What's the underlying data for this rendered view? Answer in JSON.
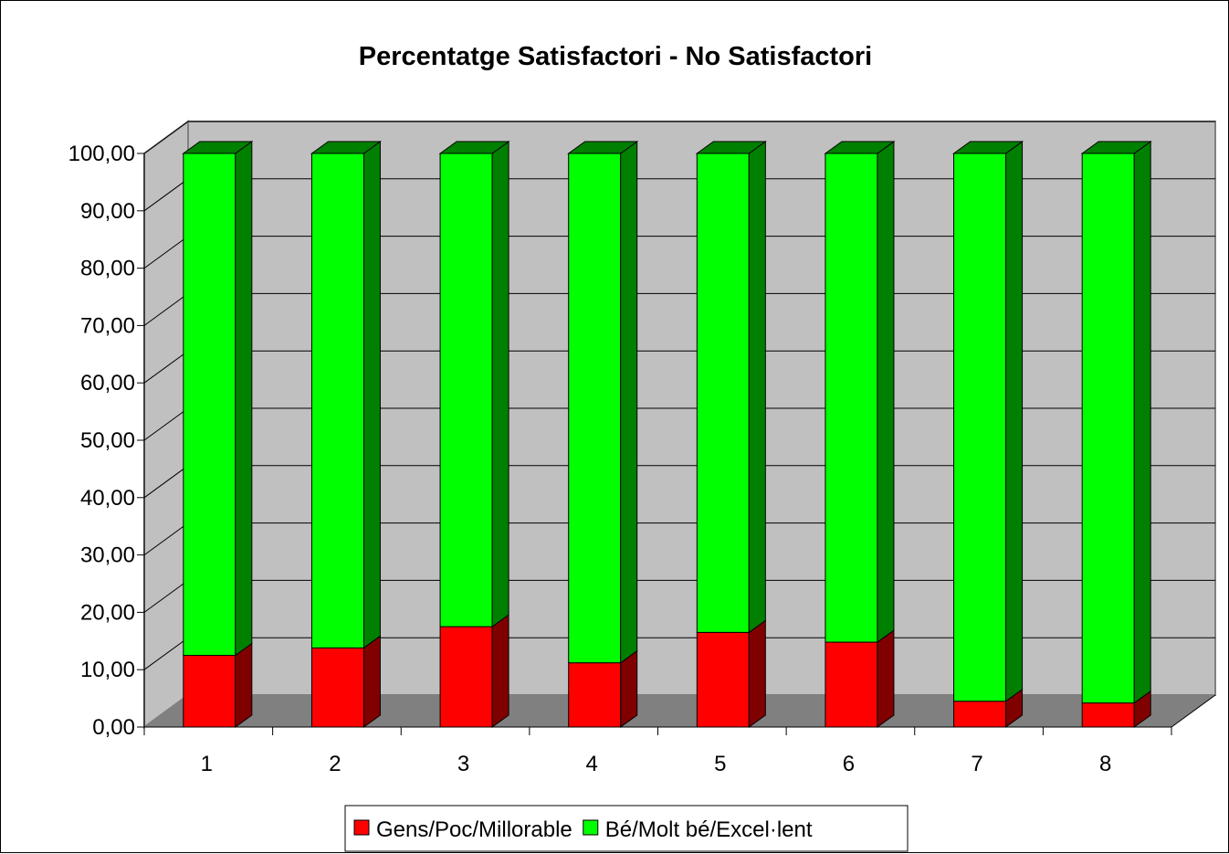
{
  "chart_data": {
    "type": "bar",
    "stacked": true,
    "three_d": true,
    "title": "Percentatge Satisfactori - No Satisfactori",
    "xlabel": "",
    "ylabel": "",
    "categories": [
      "1",
      "2",
      "3",
      "4",
      "5",
      "6",
      "7",
      "8"
    ],
    "ylim": [
      0,
      100
    ],
    "yticks": [
      "0,00",
      "10,00",
      "20,00",
      "30,00",
      "40,00",
      "50,00",
      "60,00",
      "70,00",
      "80,00",
      "90,00",
      "100,00"
    ],
    "grid": true,
    "legend_position": "bottom",
    "series": [
      {
        "name": "Gens/Poc/Millorable",
        "color": "#ff0000",
        "side_color": "#800000",
        "values": [
          12.5,
          13.8,
          17.5,
          11.2,
          16.5,
          14.8,
          4.5,
          4.2
        ]
      },
      {
        "name": "Bé/Molt bé/Excel·lent",
        "color": "#00ff00",
        "side_color": "#008000",
        "values": [
          87.5,
          86.2,
          82.5,
          88.8,
          83.5,
          85.2,
          95.5,
          95.8
        ]
      }
    ],
    "colors": {
      "wall": "#c0c0c0",
      "floor": "#808080",
      "gridline": "#000000"
    }
  }
}
